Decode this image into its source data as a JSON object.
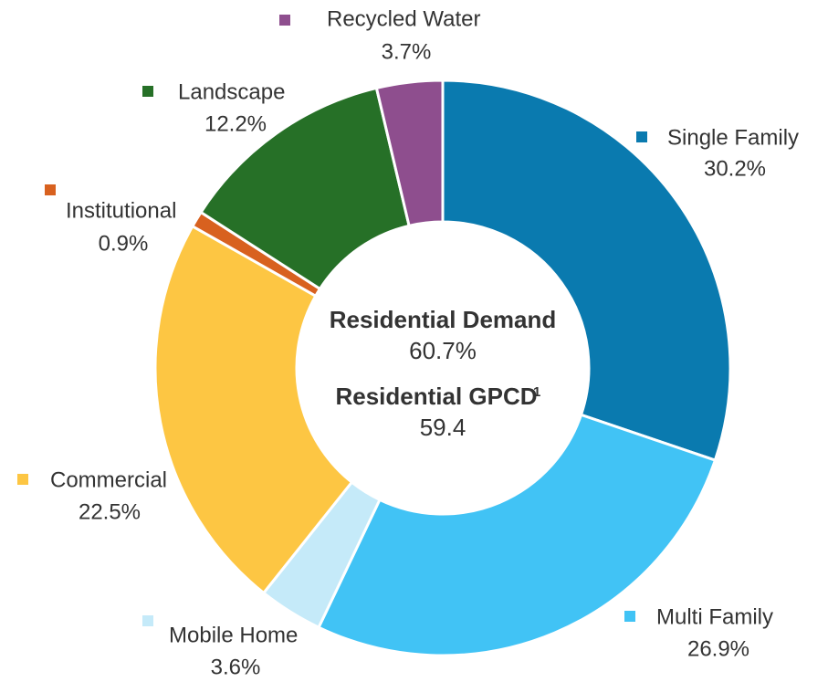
{
  "chart_data": {
    "type": "pie",
    "categories": [
      "Single Family",
      "Multi Family",
      "Mobile Home",
      "Commercial",
      "Institutional",
      "Landscape",
      "Recycled Water"
    ],
    "values": [
      30.2,
      26.9,
      3.6,
      22.5,
      0.9,
      12.2,
      3.7
    ],
    "value_labels": [
      "30.2%",
      "26.9%",
      "3.6%",
      "22.5%",
      "0.9%",
      "12.2%",
      "3.7%"
    ],
    "colors": [
      "#0a7aaf",
      "#41c3f5",
      "#c5eaf9",
      "#fdc643",
      "#d8611f",
      "#267027",
      "#8e4e8e"
    ],
    "center_text": [
      {
        "title": "Residential Demand",
        "value": "60.7%"
      },
      {
        "title": "Residential GPCD",
        "superscript": "1",
        "value": "59.4"
      }
    ]
  }
}
